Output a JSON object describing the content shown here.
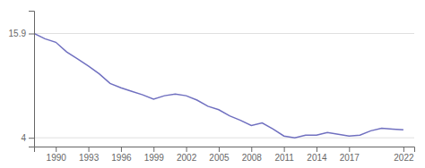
{
  "chart_data": {
    "type": "line",
    "x": [
      1988,
      1989,
      1990,
      1991,
      1992,
      1993,
      1994,
      1995,
      1996,
      1997,
      1998,
      1999,
      2000,
      2001,
      2002,
      2003,
      2004,
      2005,
      2006,
      2007,
      2008,
      2009,
      2010,
      2011,
      2012,
      2013,
      2014,
      2015,
      2016,
      2017,
      2018,
      2019,
      2020,
      2021,
      2022
    ],
    "values": [
      15.9,
      15.3,
      14.9,
      13.8,
      13.0,
      12.2,
      11.3,
      10.2,
      9.7,
      9.3,
      8.9,
      8.4,
      8.8,
      9.0,
      8.8,
      8.3,
      7.6,
      7.2,
      6.5,
      6.0,
      5.4,
      5.7,
      5.0,
      4.2,
      4.0,
      4.3,
      4.3,
      4.6,
      4.4,
      4.2,
      4.3,
      4.8,
      5.1,
      5.0,
      4.9
    ],
    "color": "#7070c0",
    "xlim": [
      1988,
      2023
    ],
    "ylim": [
      3.0,
      18.5
    ],
    "xticks": [
      1990,
      1993,
      1996,
      1999,
      2002,
      2005,
      2008,
      2011,
      2014,
      2017,
      2022
    ],
    "yticks": [
      4,
      15.9
    ],
    "grid": "y"
  }
}
